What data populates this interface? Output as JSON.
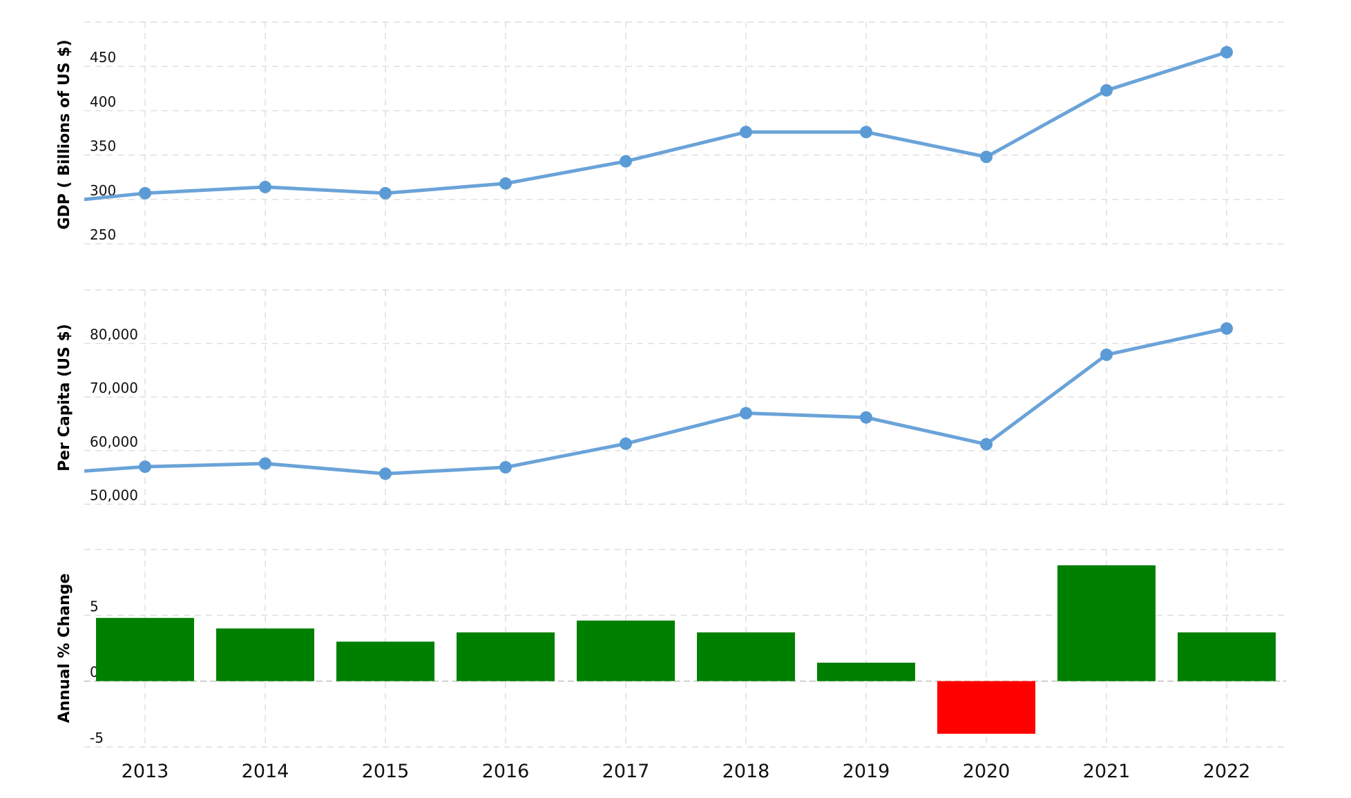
{
  "chart_data": [
    {
      "type": "line",
      "ylabel": "GDP ( Billions of US $)",
      "x": [
        "2013",
        "2014",
        "2015",
        "2016",
        "2017",
        "2018",
        "2019",
        "2020",
        "2021",
        "2022"
      ],
      "values": [
        307,
        314,
        307,
        318,
        343,
        376,
        376,
        348,
        423,
        466
      ],
      "yticks": [
        250,
        300,
        350,
        400,
        450
      ],
      "ylim": [
        247,
        500
      ],
      "leading_value": 300,
      "grid": true,
      "color": "#6aa3d8"
    },
    {
      "type": "line",
      "ylabel": "Per Capita (US $)",
      "x": [
        "2013",
        "2014",
        "2015",
        "2016",
        "2017",
        "2018",
        "2019",
        "2020",
        "2021",
        "2022"
      ],
      "values": [
        57000,
        57600,
        55700,
        56900,
        61300,
        67000,
        66200,
        61200,
        77900,
        82800
      ],
      "yticks": [
        50000,
        60000,
        70000,
        80000
      ],
      "ytick_labels": [
        "50,000",
        "60,000",
        "70,000",
        "80,000"
      ],
      "ylim": [
        49800,
        90000
      ],
      "leading_value": 56200,
      "grid": true,
      "color": "#6aa3d8"
    },
    {
      "type": "bar",
      "ylabel": "Annual % Change",
      "categories": [
        "2013",
        "2014",
        "2015",
        "2016",
        "2017",
        "2018",
        "2019",
        "2020",
        "2021",
        "2022"
      ],
      "values": [
        4.8,
        4.0,
        3.0,
        3.7,
        4.6,
        3.7,
        1.4,
        -4.0,
        8.8,
        3.7
      ],
      "yticks": [
        -5,
        0,
        5
      ],
      "ylim": [
        -5,
        10
      ],
      "grid": true,
      "colors": {
        "positive": "#008000",
        "negative": "#ff0000"
      }
    }
  ]
}
